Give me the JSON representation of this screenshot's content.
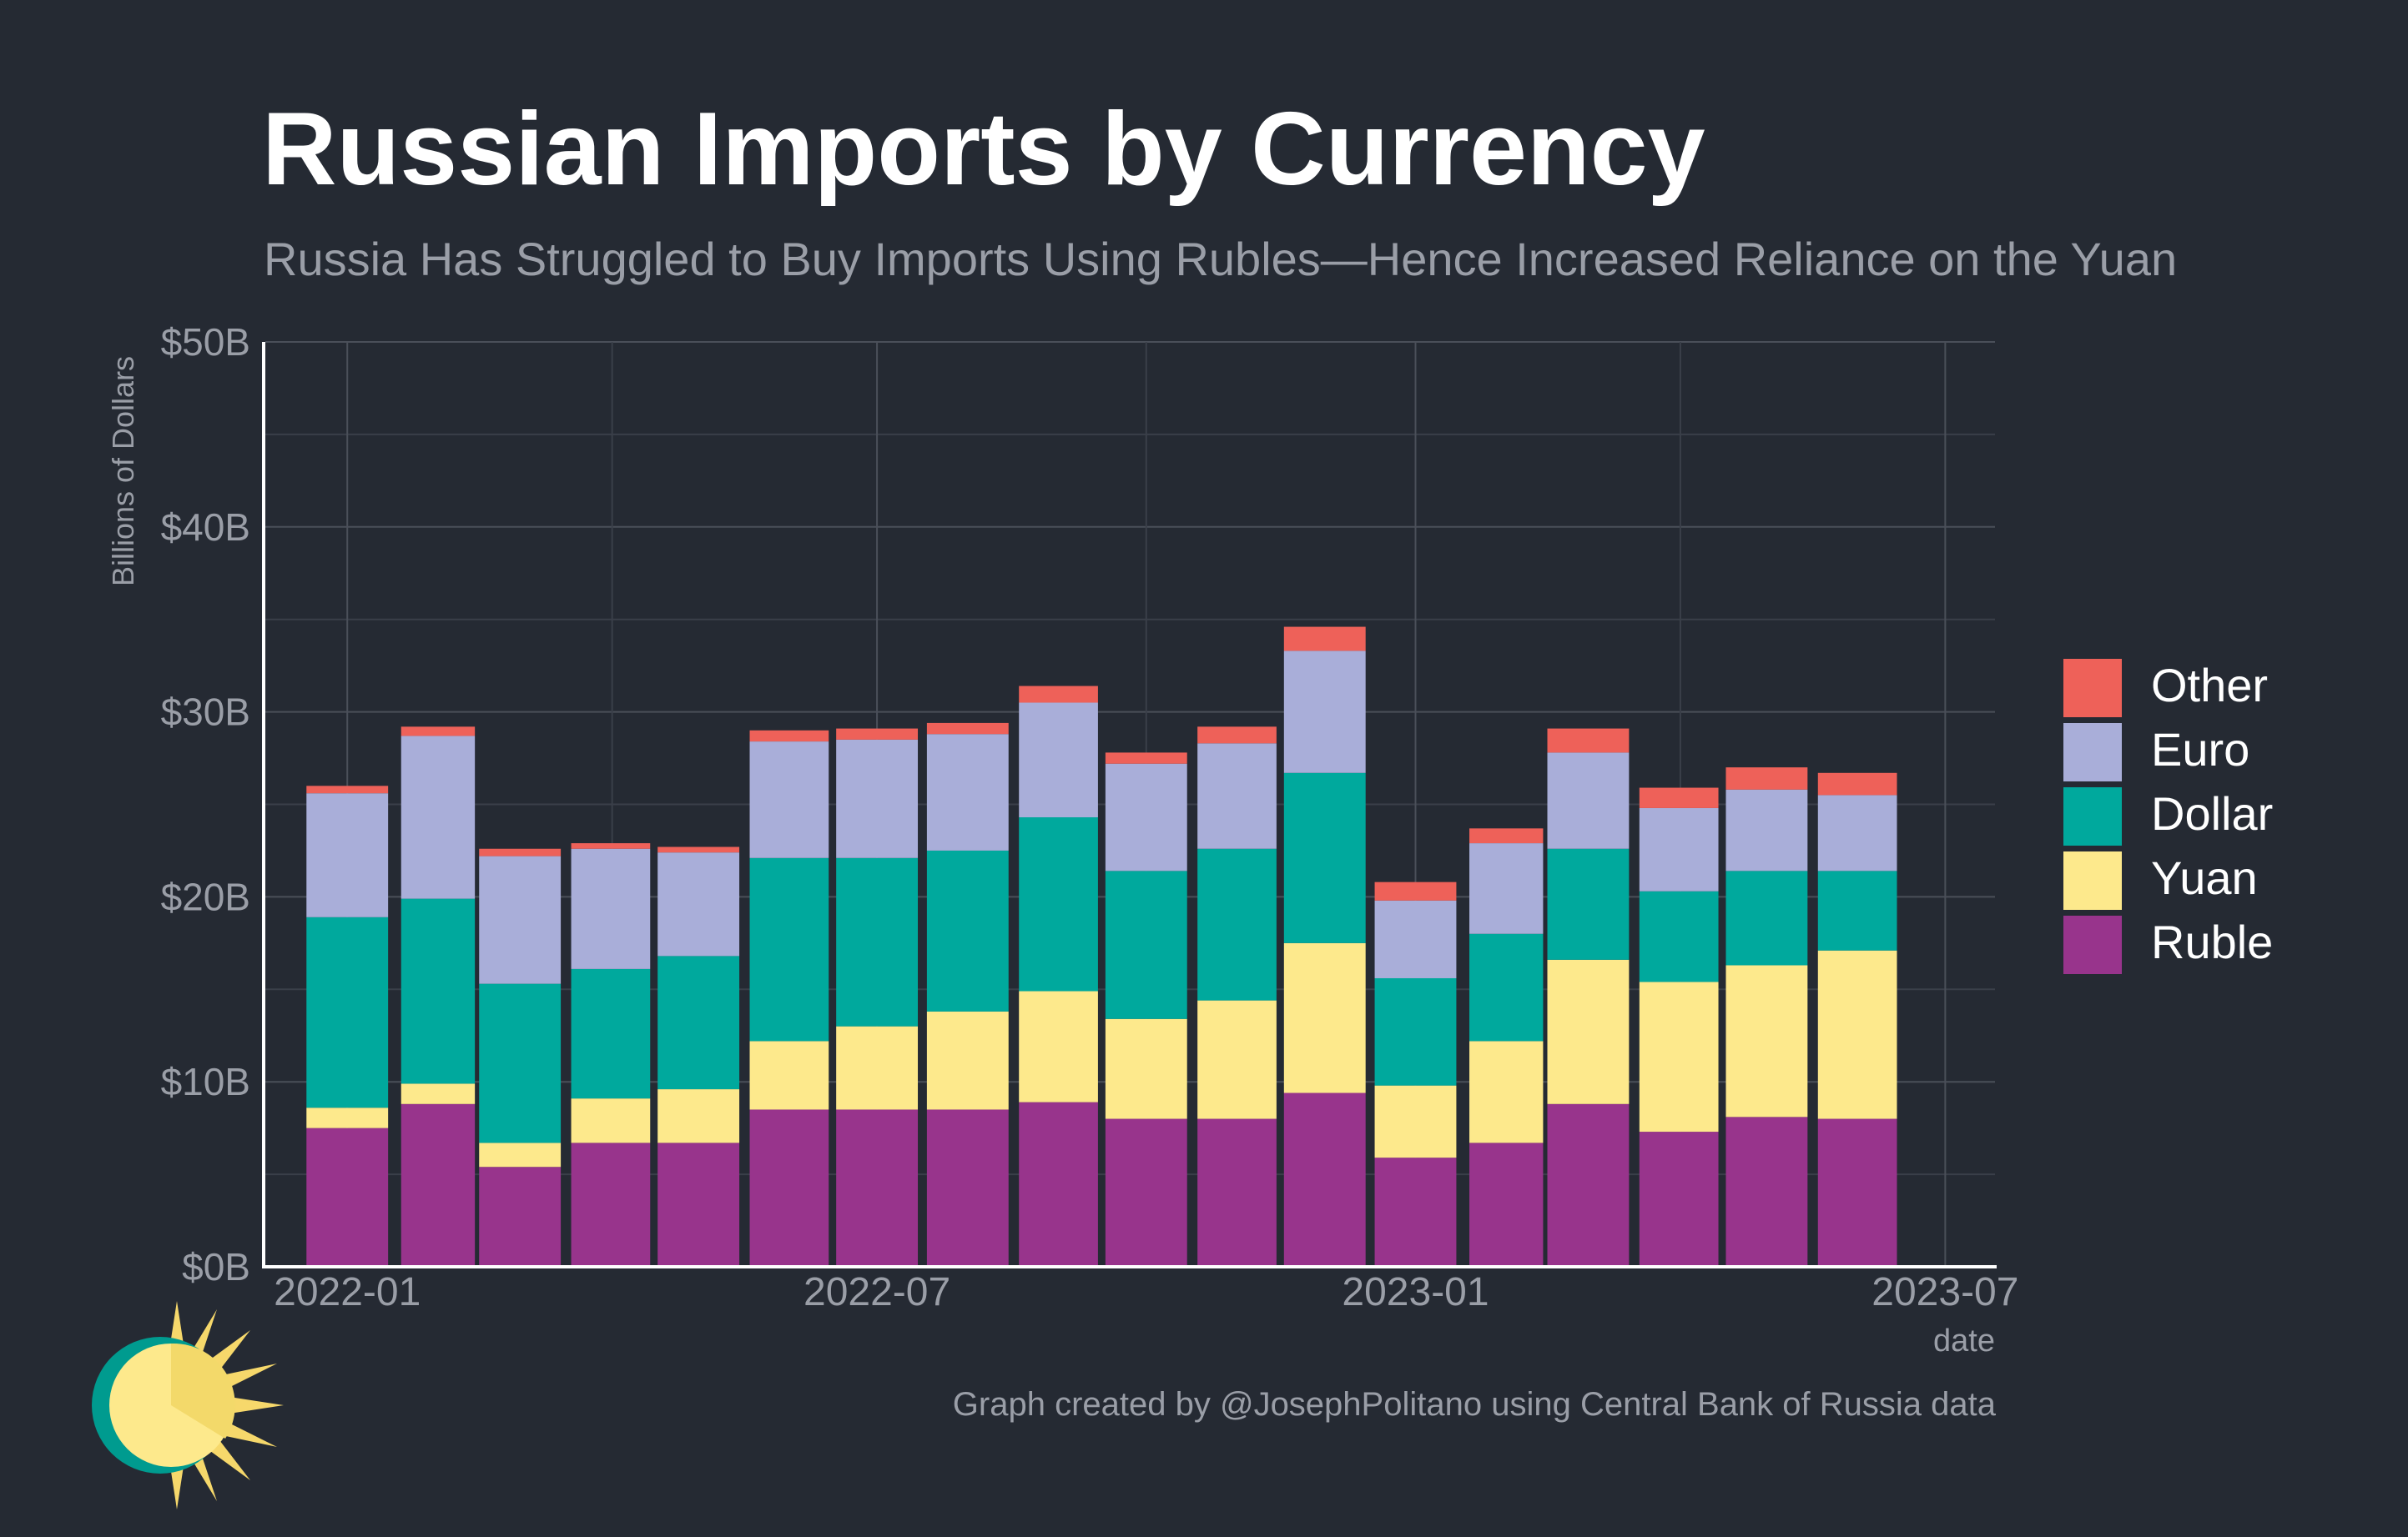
{
  "title": "Russian Imports by Currency",
  "subtitle": "Russia Has Struggled to Buy Imports Using Rubles—Hence Increased Reliance on the Yuan",
  "caption": "Graph created by @JosephPolitano using Central Bank of Russia data",
  "chart_data": {
    "type": "bar",
    "stacked": true,
    "title": "Russian Imports by Currency",
    "subtitle": "Russia Has Struggled to Buy Imports Using Rubles—Hence Increased Reliance on the Yuan",
    "xlabel": "date",
    "ylabel": "Billions of Dollars",
    "ylim": [
      0,
      50
    ],
    "y_ticks": [
      "$0B",
      "$10B",
      "$20B",
      "$30B",
      "$40B",
      "$50B"
    ],
    "y_tick_values": [
      0,
      10,
      20,
      30,
      40,
      50
    ],
    "x_ticks": [
      "2022-01",
      "2022-07",
      "2023-01",
      "2023-07"
    ],
    "x_tick_dates": [
      "2022-01-01",
      "2022-07-01",
      "2023-01-01",
      "2023-07-01"
    ],
    "xlim": [
      "2021-12-04",
      "2023-07-18"
    ],
    "categories": [
      "2022-01-01",
      "2022-02-01",
      "2022-03-01",
      "2022-04-01",
      "2022-05-01",
      "2022-06-01",
      "2022-07-01",
      "2022-08-01",
      "2022-09-01",
      "2022-10-01",
      "2022-11-01",
      "2022-12-01",
      "2023-01-01",
      "2023-02-01",
      "2023-03-01",
      "2023-04-01",
      "2023-05-01",
      "2023-06-01"
    ],
    "grid": true,
    "legend_position": "right",
    "series": [
      {
        "name": "Ruble",
        "color": "#98348c",
        "values": [
          7.5,
          8.8,
          5.4,
          6.7,
          6.7,
          8.5,
          8.5,
          8.5,
          8.9,
          8.0,
          8.0,
          9.4,
          5.9,
          6.7,
          8.8,
          7.3,
          8.1,
          8.0
        ]
      },
      {
        "name": "Yuan",
        "color": "#fde98c",
        "values": [
          1.1,
          1.1,
          1.3,
          2.4,
          2.9,
          3.7,
          4.5,
          5.3,
          6.0,
          5.4,
          6.4,
          8.1,
          3.9,
          5.5,
          7.8,
          8.1,
          8.2,
          9.1
        ]
      },
      {
        "name": "Dollar",
        "color": "#00a99d",
        "values": [
          10.3,
          10.0,
          8.6,
          7.0,
          7.2,
          9.9,
          9.1,
          8.7,
          9.4,
          8.0,
          8.2,
          9.2,
          5.8,
          5.8,
          6.0,
          4.9,
          5.1,
          4.3
        ]
      },
      {
        "name": "Euro",
        "color": "#a9aed9",
        "values": [
          6.7,
          8.8,
          6.9,
          6.5,
          5.6,
          6.3,
          6.4,
          6.3,
          6.2,
          5.8,
          5.7,
          6.6,
          4.2,
          4.9,
          5.2,
          4.5,
          4.4,
          4.1
        ]
      },
      {
        "name": "Other",
        "color": "#ee6159",
        "values": [
          0.4,
          0.5,
          0.4,
          0.3,
          0.3,
          0.6,
          0.6,
          0.6,
          0.9,
          0.6,
          0.9,
          1.3,
          1.0,
          0.8,
          1.3,
          1.1,
          1.2,
          1.2
        ]
      }
    ],
    "legend_order": [
      "Other",
      "Euro",
      "Dollar",
      "Yuan",
      "Ruble"
    ]
  }
}
